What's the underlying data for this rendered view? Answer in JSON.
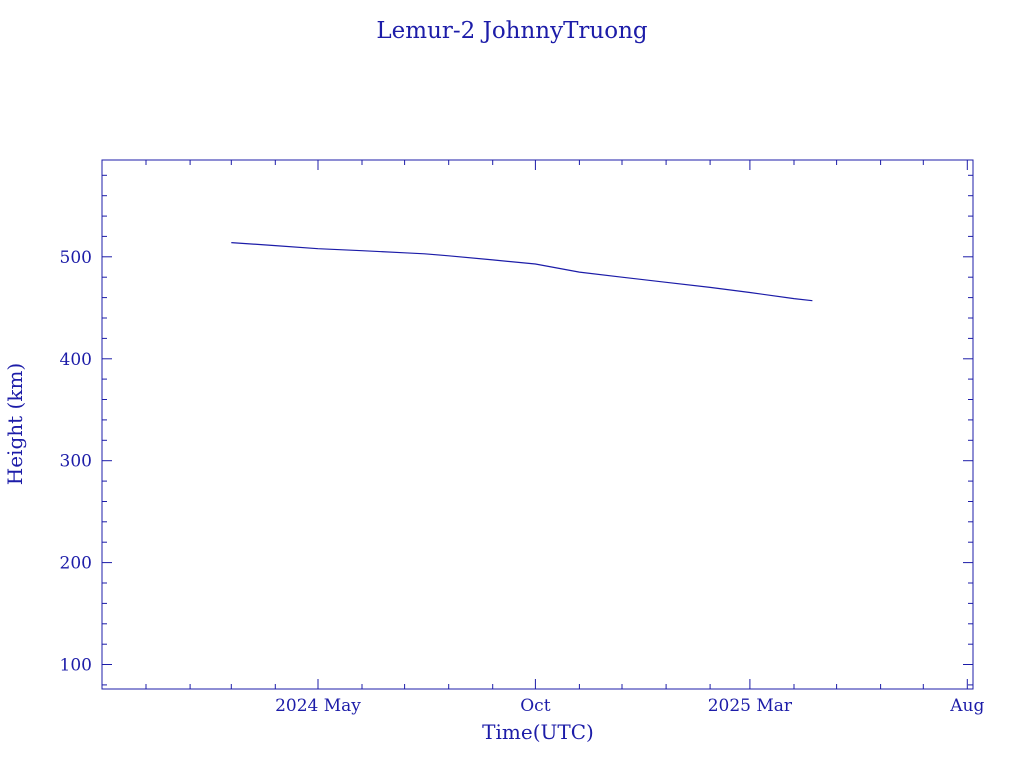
{
  "colors": {
    "ink": "#1c1ca8",
    "background": "#ffffff"
  },
  "chart_data": {
    "type": "line",
    "title": "Lemur-2 JohnnyTruong",
    "xlabel": "Time(UTC)",
    "ylabel": "Height (km)",
    "x_axis": {
      "type": "date",
      "range": [
        "2023-12-01",
        "2025-08-05"
      ],
      "ticks": [
        {
          "date": "2024-05-01",
          "label": "2024 May"
        },
        {
          "date": "2024-10-01",
          "label": "Oct"
        },
        {
          "date": "2025-03-01",
          "label": "2025 Mar"
        },
        {
          "date": "2025-08-01",
          "label": "Aug"
        }
      ]
    },
    "y_axis": {
      "range": [
        76,
        595
      ],
      "ticks": [
        100,
        200,
        300,
        400,
        500
      ],
      "minor_step": 20
    },
    "grid": false,
    "series": [
      {
        "x": [
          "2024-03-01",
          "2024-04-01",
          "2024-05-01",
          "2024-06-01",
          "2024-07-01",
          "2024-07-15",
          "2024-08-01",
          "2024-09-01",
          "2024-10-01",
          "2024-11-01",
          "2024-12-01",
          "2025-01-01",
          "2025-02-01",
          "2025-03-01",
          "2025-04-01",
          "2025-04-14"
        ],
        "y": [
          514,
          511,
          508,
          506,
          504,
          503,
          501,
          497,
          493,
          485,
          480,
          475,
          470,
          465,
          459,
          457
        ]
      }
    ]
  }
}
